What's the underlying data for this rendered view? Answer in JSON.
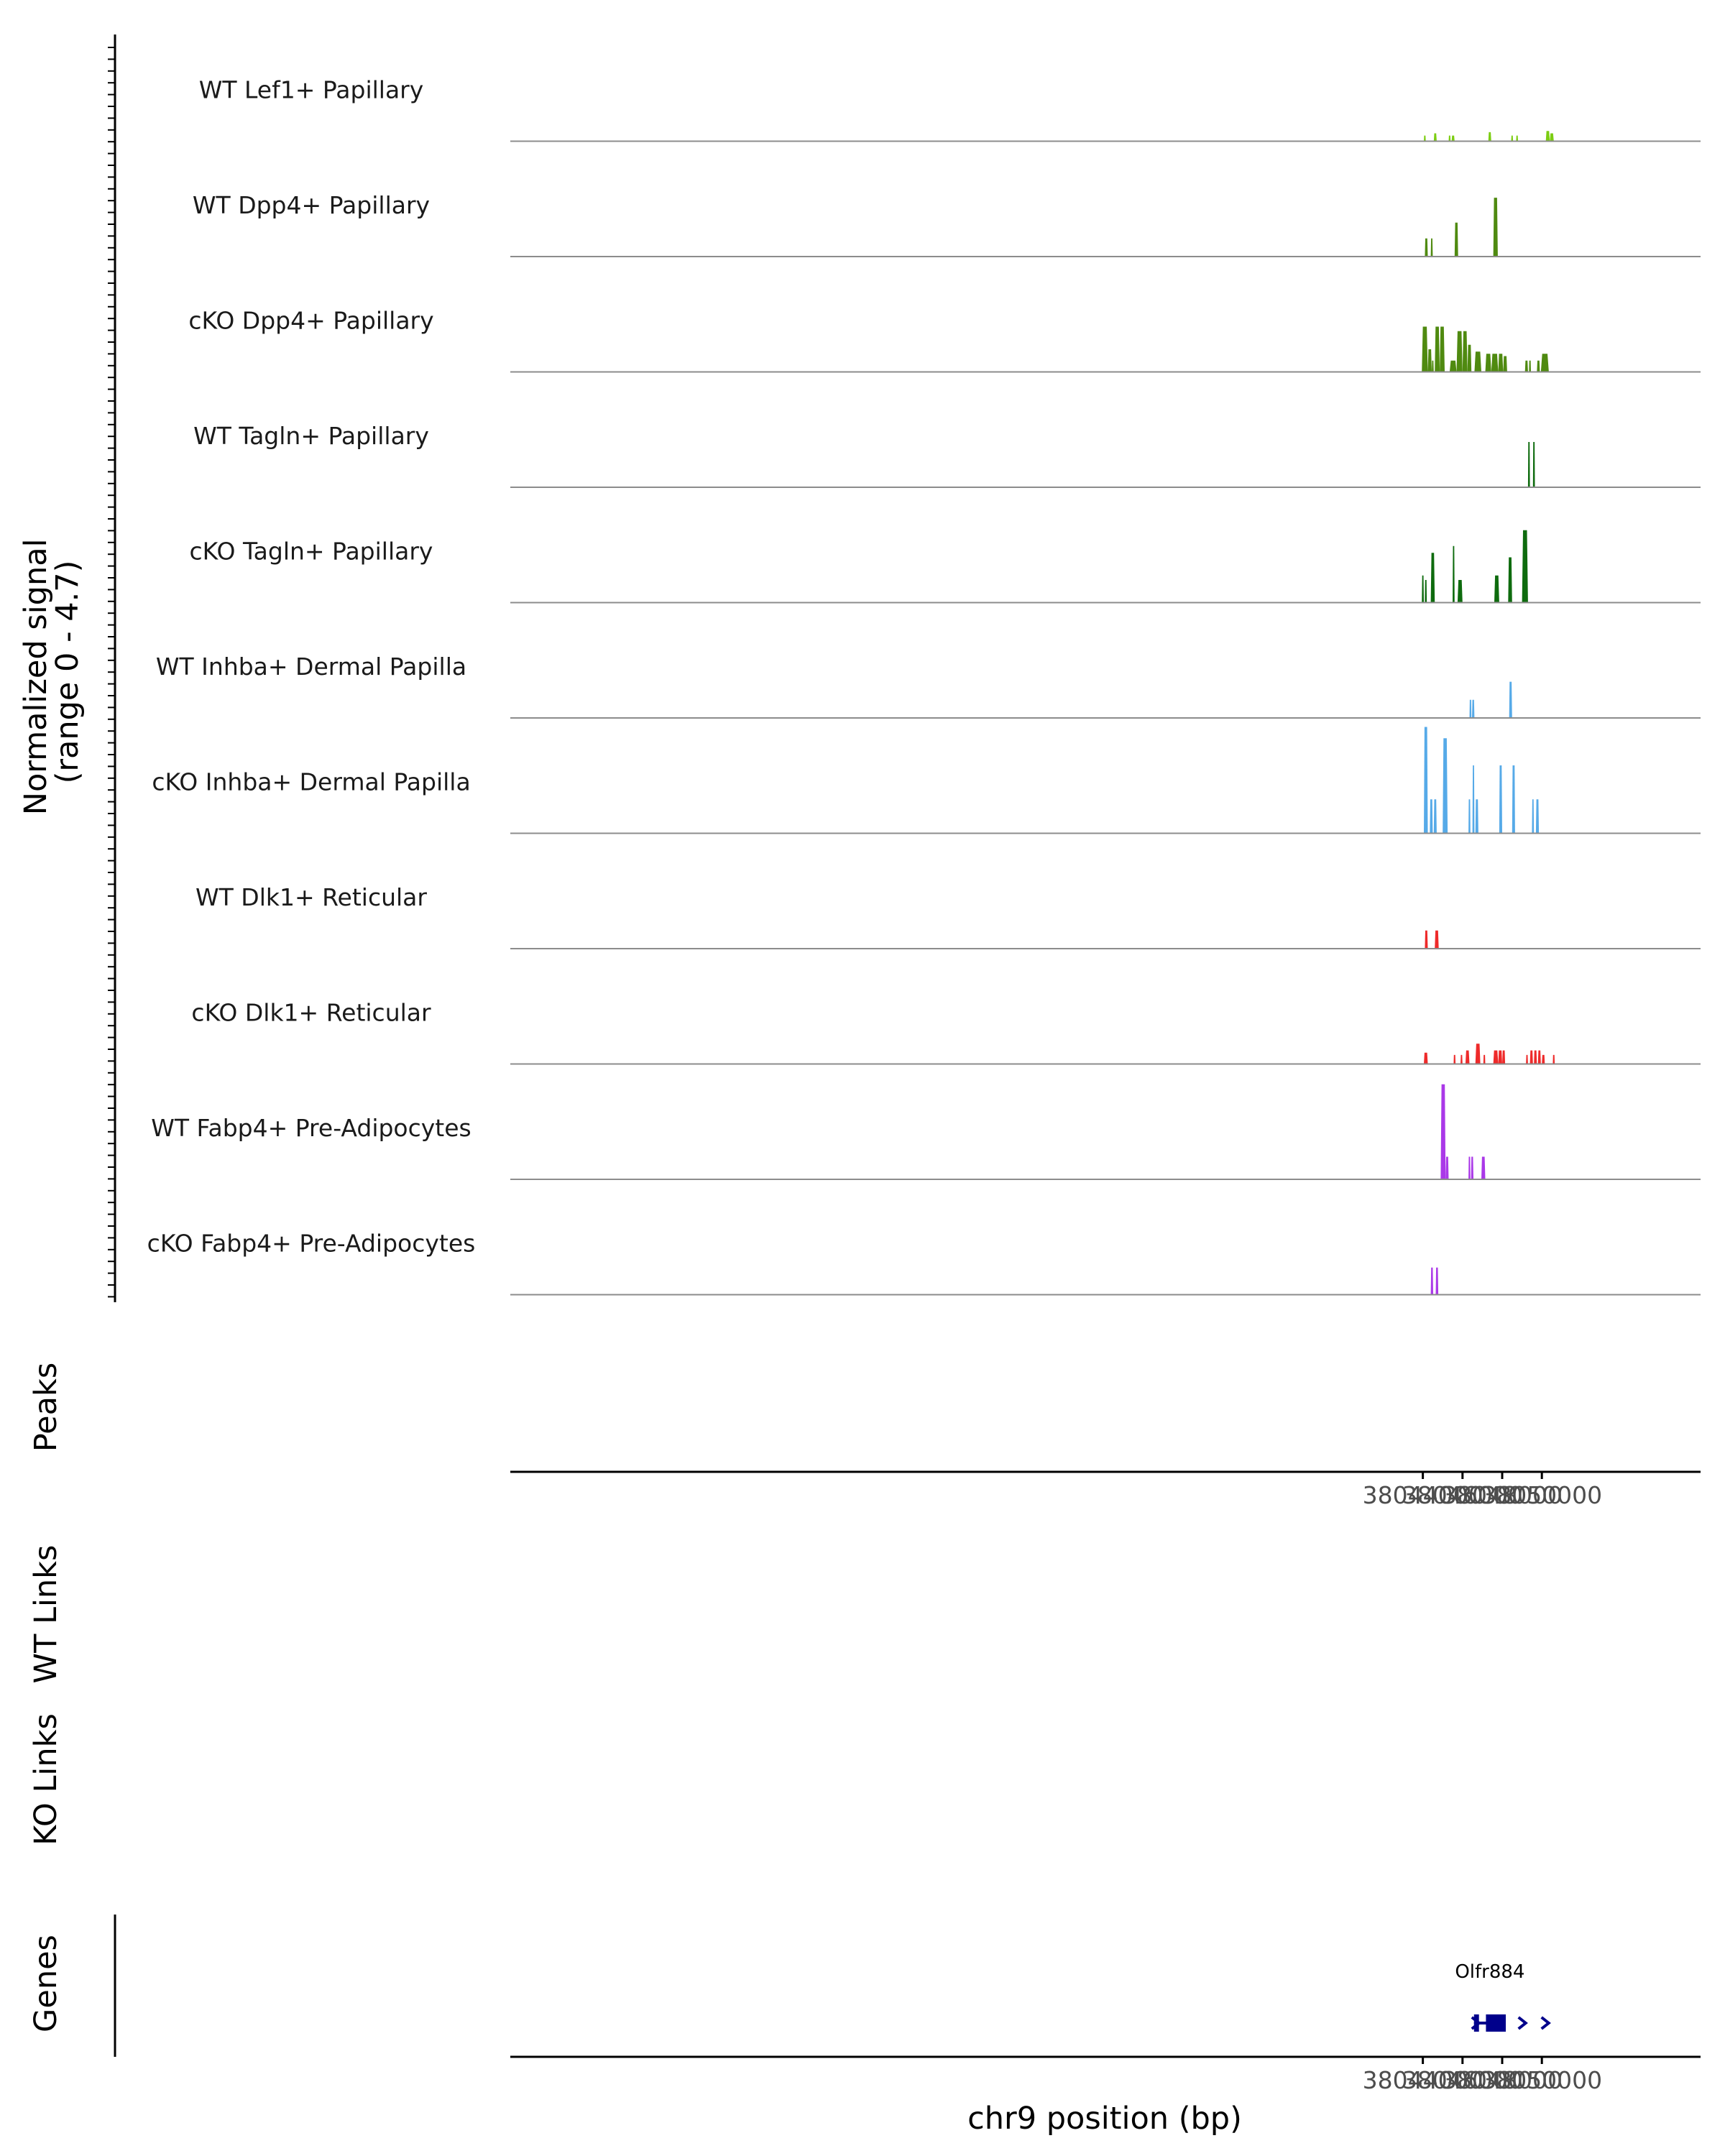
{
  "chart_data": {
    "type": "area",
    "y_axis_title": [
      "Normalized signal",
      "(range 0 - 4.7)"
    ],
    "y_range": [
      0,
      4.7
    ],
    "x_axis_title": "chr9 position (bp)",
    "x_range": [
      37998000,
      38058000
    ],
    "x_ticks": [
      38044000,
      38046000,
      38048000,
      38050000
    ],
    "x_tick_labels": [
      "38044000",
      "38046000",
      "38048000",
      "38050000"
    ],
    "tracks": [
      {
        "name": "WT Lef1+ Papillary",
        "color": "#7ccd12",
        "regions": [
          [
            38044050,
            38044150,
            0.25
          ],
          [
            38044550,
            38044700,
            0.35
          ],
          [
            38045300,
            38045400,
            0.25
          ],
          [
            38045450,
            38045600,
            0.25
          ],
          [
            38047300,
            38047450,
            0.4
          ],
          [
            38048450,
            38048550,
            0.25
          ],
          [
            38048700,
            38048800,
            0.25
          ],
          [
            38050200,
            38050400,
            0.45
          ],
          [
            38050400,
            38050600,
            0.35
          ]
        ]
      },
      {
        "name": "WT Dpp4+ Papillary",
        "color": "#4f8a10",
        "regions": [
          [
            38044100,
            38044250,
            0.8
          ],
          [
            38044400,
            38044500,
            0.8
          ],
          [
            38045600,
            38045780,
            1.5
          ],
          [
            38047550,
            38047780,
            2.6
          ]
        ]
      },
      {
        "name": "cKO Dpp4+ Papillary",
        "color": "#4f8a10",
        "regions": [
          [
            38043950,
            38044250,
            2.0
          ],
          [
            38044250,
            38044450,
            1.0
          ],
          [
            38044450,
            38044550,
            0.5
          ],
          [
            38044600,
            38044850,
            2.0
          ],
          [
            38044850,
            38045100,
            2.0
          ],
          [
            38045350,
            38045700,
            0.5
          ],
          [
            38045700,
            38046000,
            1.8
          ],
          [
            38046000,
            38046250,
            1.8
          ],
          [
            38046250,
            38046450,
            1.2
          ],
          [
            38046600,
            38046950,
            0.9
          ],
          [
            38047150,
            38047450,
            0.8
          ],
          [
            38047450,
            38047800,
            0.8
          ],
          [
            38047800,
            38048050,
            0.8
          ],
          [
            38048050,
            38048250,
            0.7
          ],
          [
            38049150,
            38049300,
            0.5
          ],
          [
            38049350,
            38049450,
            0.5
          ],
          [
            38049750,
            38049900,
            0.5
          ],
          [
            38049950,
            38050350,
            0.8
          ]
        ]
      },
      {
        "name": "WT Tagln+ Papillary",
        "color": "#0e6b0e",
        "regions": [
          [
            38049300,
            38049400,
            2.0
          ],
          [
            38049550,
            38049650,
            2.0
          ]
        ]
      },
      {
        "name": "cKO Tagln+ Papillary",
        "color": "#0e6b0e",
        "regions": [
          [
            38043950,
            38044050,
            1.2
          ],
          [
            38044100,
            38044200,
            1.0
          ],
          [
            38044400,
            38044600,
            2.2
          ],
          [
            38045500,
            38045600,
            2.5
          ],
          [
            38045750,
            38046000,
            1.0
          ],
          [
            38047600,
            38047850,
            1.2
          ],
          [
            38048300,
            38048500,
            2.0
          ],
          [
            38049000,
            38049300,
            3.2
          ]
        ]
      },
      {
        "name": "WT Inhba+ Dermal Papilla",
        "color": "#56aae8",
        "regions": [
          [
            38046350,
            38046450,
            0.8
          ],
          [
            38046480,
            38046600,
            0.8
          ],
          [
            38048350,
            38048500,
            1.6
          ]
        ]
      },
      {
        "name": "cKO Inhba+ Dermal Papilla",
        "color": "#56aae8",
        "regions": [
          [
            38044050,
            38044250,
            4.7
          ],
          [
            38044350,
            38044500,
            1.5
          ],
          [
            38044550,
            38044700,
            1.5
          ],
          [
            38045000,
            38045250,
            4.2
          ],
          [
            38046300,
            38046400,
            1.5
          ],
          [
            38046500,
            38046600,
            3.0
          ],
          [
            38046650,
            38046800,
            1.5
          ],
          [
            38047850,
            38048000,
            3.0
          ],
          [
            38048500,
            38048650,
            3.0
          ],
          [
            38049500,
            38049600,
            1.5
          ],
          [
            38049700,
            38049850,
            1.5
          ]
        ]
      },
      {
        "name": "WT Dlk1+ Reticular",
        "color": "#ee2a2a",
        "regions": [
          [
            38044100,
            38044250,
            0.8
          ],
          [
            38044600,
            38044800,
            0.8
          ]
        ]
      },
      {
        "name": "cKO Dlk1+ Reticular",
        "color": "#ee2a2a",
        "regions": [
          [
            38044050,
            38044250,
            0.5
          ],
          [
            38045550,
            38045650,
            0.4
          ],
          [
            38045900,
            38046000,
            0.4
          ],
          [
            38046150,
            38046350,
            0.6
          ],
          [
            38046650,
            38046900,
            0.9
          ],
          [
            38047050,
            38047150,
            0.4
          ],
          [
            38047550,
            38047800,
            0.6
          ],
          [
            38047800,
            38048000,
            0.6
          ],
          [
            38048000,
            38048150,
            0.6
          ],
          [
            38049200,
            38049300,
            0.4
          ],
          [
            38049400,
            38049550,
            0.6
          ],
          [
            38049600,
            38049750,
            0.6
          ],
          [
            38049800,
            38049950,
            0.6
          ],
          [
            38050000,
            38050150,
            0.4
          ],
          [
            38050550,
            38050650,
            0.4
          ]
        ]
      },
      {
        "name": "WT Fabp4+ Pre-Adipocytes",
        "color": "#aa38e8",
        "regions": [
          [
            38044900,
            38045150,
            4.2
          ],
          [
            38045150,
            38045300,
            1.0
          ],
          [
            38046300,
            38046400,
            1.0
          ],
          [
            38046430,
            38046550,
            1.0
          ],
          [
            38046950,
            38047150,
            1.0
          ]
        ]
      },
      {
        "name": "cKO Fabp4+ Pre-Adipocytes",
        "color": "#aa38e8",
        "regions": [
          [
            38044400,
            38044520,
            1.2
          ],
          [
            38044650,
            38044780,
            1.2
          ]
        ]
      }
    ],
    "panels": {
      "peaks": {
        "label": "Peaks"
      },
      "wt_links": {
        "label": "WT Links"
      },
      "ko_links": {
        "label": "KO Links"
      },
      "genes": {
        "label": "Genes",
        "gene": {
          "name": "Olfr884",
          "color": "#00008b",
          "start": 38046580,
          "end": 38048180,
          "exons": [
            [
              38046580,
              38046830
            ],
            [
              38047180,
              38048180
            ]
          ],
          "strand": "+"
        }
      }
    }
  }
}
